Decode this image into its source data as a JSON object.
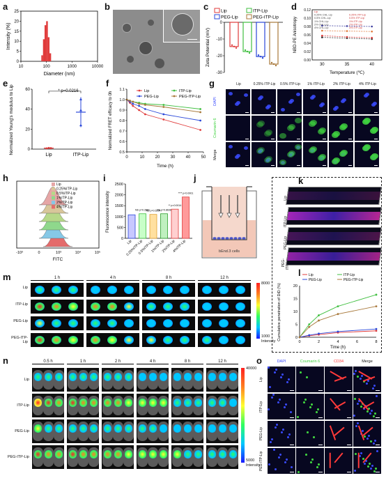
{
  "panel_labels": [
    "a",
    "b",
    "c",
    "d",
    "e",
    "f",
    "g",
    "h",
    "i",
    "j",
    "k",
    "l",
    "m",
    "n",
    "o"
  ],
  "colors": {
    "lip": "#e03b3b",
    "itp": "#3fbf3f",
    "peg": "#2a47d9",
    "pegitp": "#a8783a",
    "dapi": "#3a4bff",
    "coumarin": "#3fd23f",
    "cd34": "#ff3a3a"
  },
  "panel_a": {
    "chart_data": {
      "type": "bar",
      "xlabel": "Diameter (nm)",
      "ylabel": "Intensity (%)",
      "x_scale": "log",
      "xlim": [
        10,
        10000
      ],
      "ylim": [
        0,
        25
      ],
      "xticks": [
        "10",
        "100",
        "1000",
        "10000"
      ],
      "yticks": [
        "0",
        "5",
        "10",
        "15",
        "20",
        "25"
      ],
      "x": [
        68,
        79,
        91,
        105,
        122,
        141
      ],
      "values": [
        3,
        11,
        18,
        20,
        12,
        4
      ]
    }
  },
  "panel_c": {
    "chart_data": {
      "type": "bar",
      "ylabel": "Zeta Potential (mV)",
      "ylim": [
        -30,
        0
      ],
      "yticks": [
        "0",
        "-10",
        "-20",
        "-30"
      ],
      "categories": [
        "Lip",
        "ITP-Lip",
        "PEG-Lip",
        "PEG-ITP-Lip"
      ],
      "values": [
        -14.5,
        -17.5,
        -20.5,
        -25
      ]
    }
  },
  "panel_d": {
    "chart_data": {
      "type": "line",
      "xlabel": "Temperature (℃)",
      "ylabel": "NBD-PE Anisotropy",
      "xlim": [
        28,
        42
      ],
      "ylim": [
        0.0,
        0.12
      ],
      "xticks": [
        "30",
        "35",
        "40"
      ],
      "yticks": [
        "0.00",
        "0.02",
        "0.04",
        "0.06",
        "0.08",
        "0.10",
        "0.12"
      ],
      "x": [
        30,
        35,
        40
      ],
      "legend": [
        "Lip",
        "0.25% CHL-Lip",
        "0.25% ITP-Lip",
        "0.5% CHL-Lip",
        "0.5% ITP-Lip",
        "1% CHL-Lip",
        "1% ITP-Lip",
        "2% CHL-Lip",
        "2% ITP-Lip",
        "4% CHL-Lip",
        "4% ITP-Lip"
      ],
      "series": [
        {
          "name": "Lip",
          "values": [
            0.054,
            0.052,
            0.05
          ]
        },
        {
          "name": "0.25% ITP-Lip",
          "values": [
            0.058,
            0.055,
            0.053
          ]
        },
        {
          "name": "1% ITP-Lip",
          "values": [
            0.07,
            0.069,
            0.068
          ]
        },
        {
          "name": "4% ITP-Lip",
          "values": [
            0.082,
            0.081,
            0.08
          ]
        }
      ]
    }
  },
  "panel_e": {
    "chart_data": {
      "type": "scatter",
      "ylabel": "Normalized Young's modulus to Lip",
      "ylim": [
        0,
        60
      ],
      "yticks": [
        "0",
        "20",
        "40",
        "60"
      ],
      "categories": [
        "Lip",
        "ITP-Lip"
      ],
      "values": [
        1,
        37
      ],
      "annotation": "* p=0.0216"
    }
  },
  "panel_f": {
    "chart_data": {
      "type": "line",
      "xlabel": "Time (h)",
      "ylabel": "Normalized FRET efficacy to 0h",
      "xlim": [
        0,
        50
      ],
      "ylim": [
        0.5,
        1.1
      ],
      "xticks": [
        "0",
        "10",
        "20",
        "30",
        "40",
        "50"
      ],
      "yticks": [
        "0.5",
        "0.6",
        "0.7",
        "0.8",
        "0.9",
        "1.0",
        "1.1"
      ],
      "x": [
        0,
        2,
        4,
        8,
        12,
        24,
        48
      ],
      "series": [
        {
          "name": "Lip",
          "values": [
            1.0,
            0.97,
            0.94,
            0.9,
            0.86,
            0.81,
            0.71
          ]
        },
        {
          "name": "ITP-Lip",
          "values": [
            1.0,
            0.99,
            0.98,
            0.97,
            0.96,
            0.95,
            0.91
          ]
        },
        {
          "name": "PEG-Lip",
          "values": [
            1.0,
            0.98,
            0.96,
            0.94,
            0.91,
            0.86,
            0.8
          ]
        },
        {
          "name": "PEG-ITP-Lip",
          "values": [
            1.0,
            0.99,
            0.98,
            0.96,
            0.95,
            0.93,
            0.88
          ]
        }
      ]
    }
  },
  "panel_g": {
    "columns": [
      "Lip",
      "0.25% ITP-Lip",
      "0.5% ITP-Lip",
      "1% ITP-Lip",
      "2% ITP-Lip",
      "4% ITP-Lip"
    ],
    "rows": [
      "DAPI",
      "Coumarin 6",
      "Merge"
    ]
  },
  "panel_h": {
    "xlabel": "FITC",
    "xticks": [
      "-10³",
      "0",
      "10³",
      "10⁴",
      "10⁵"
    ],
    "legend": [
      "Lip",
      "0.25%ITP-Lip",
      "0.5%ITP-Lip",
      "1%ITP-Lip",
      "2%ITP-Lip",
      "4%ITP-Lip"
    ],
    "legend_colors": [
      "#e6a6a6",
      "#d8c69a",
      "#b6d889",
      "#8fd88c",
      "#86c8e6",
      "#e46b6b"
    ]
  },
  "panel_i": {
    "chart_data": {
      "type": "bar",
      "ylabel": "Fluorescence intensity",
      "ylim": [
        0,
        2500
      ],
      "yticks": [
        "0",
        "500",
        "1000",
        "1500",
        "2000",
        "2500"
      ],
      "categories": [
        "Lip",
        "0.25%ITP-Lip",
        "0.5%ITP-Lip",
        "1%ITP-Lip",
        "2%ITP-Lip",
        "4%ITP-Lip"
      ],
      "values": [
        1080,
        1130,
        1100,
        1130,
        1340,
        1900
      ],
      "annotations": [
        "",
        "NS p=0.2661",
        "NS p=0.5294",
        "NS p=0.8638",
        "** p=0.0014",
        "**** p<0.0001"
      ]
    }
  },
  "panel_j": {
    "label": "bEnd.3 cells"
  },
  "panel_k": {
    "rows": [
      "Lip",
      "ITP-Lip",
      "PEG-Lip",
      "PEG-ITP-Lip"
    ]
  },
  "panel_l": {
    "chart_data": {
      "type": "line",
      "xlabel": "Time (h)",
      "ylabel": "Cumulative penetration of DiD (%)",
      "xlim": [
        0,
        8
      ],
      "ylim": [
        0,
        20
      ],
      "xticks": [
        "0",
        "2",
        "4",
        "6",
        "8"
      ],
      "yticks": [
        "0",
        "5",
        "10",
        "15",
        "20"
      ],
      "x": [
        0,
        1,
        2,
        4,
        8
      ],
      "series": [
        {
          "name": "Lip",
          "values": [
            0,
            0.6,
            1.0,
            1.8,
            2.5
          ]
        },
        {
          "name": "ITP-Lip",
          "values": [
            0,
            5,
            8.5,
            12,
            16.5
          ]
        },
        {
          "name": "PEG-Lip",
          "values": [
            0,
            0.8,
            1.4,
            2.2,
            3.2
          ]
        },
        {
          "name": "PEG-ITP-Lip",
          "values": [
            0,
            4,
            6.5,
            9,
            12
          ]
        }
      ]
    }
  },
  "panel_m": {
    "times": [
      "1 h",
      "4 h",
      "8 h",
      "12 h"
    ],
    "rows": [
      "Lip",
      "ITP-Lip",
      "PEG-Lip",
      "PEG-ITP-Lip"
    ],
    "scale_max": "8000",
    "scale_min": "1000",
    "scale_label": "Intensity"
  },
  "panel_n": {
    "times": [
      "0.5 h",
      "1 h",
      "2 h",
      "4 h",
      "8 h",
      "12 h"
    ],
    "rows": [
      "Lip",
      "ITP-Lip",
      "PEG-Lip",
      "PEG-ITP-Lip"
    ],
    "scale_max": "40000",
    "scale_min": "5000",
    "scale_label": "Intensity"
  },
  "panel_o": {
    "columns": [
      "DAPI",
      "Coumarin 6",
      "CD34",
      "Merge"
    ],
    "rows": [
      "Lip",
      "ITP-Lip",
      "PEG-Lip",
      "PEG-ITP-Lip"
    ]
  }
}
